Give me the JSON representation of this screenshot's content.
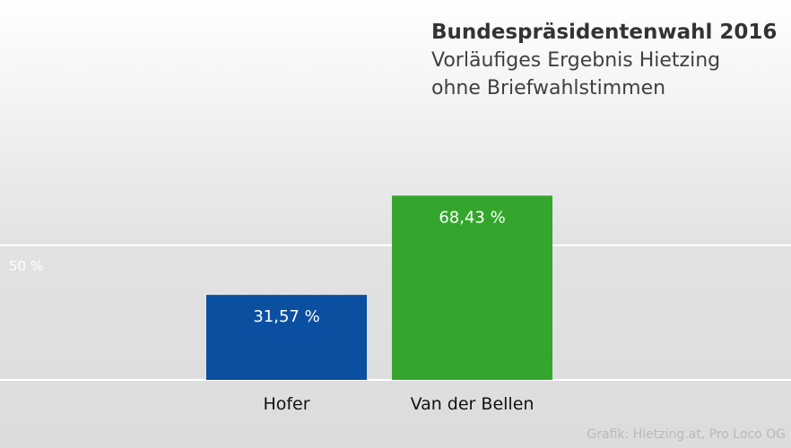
{
  "chart_data": {
    "type": "bar",
    "title": "Bundespräsidentenwahl 2016",
    "subtitle_lines": [
      "Vorläufiges Ergebnis Hietzing",
      "ohne Briefwahlstimmen"
    ],
    "categories": [
      "Hofer",
      "Van der Bellen"
    ],
    "values": [
      31.57,
      68.43
    ],
    "value_labels": [
      "31,57 %",
      "68,43 %"
    ],
    "colors": [
      "#0b4fa1",
      "#35a62d"
    ],
    "reference_line": {
      "value": 50,
      "label": "50 %"
    },
    "ylim": [
      0,
      100
    ],
    "xlabel": "",
    "ylabel": ""
  },
  "credit": "Grafik: Hietzing.at, Pro Loco OG"
}
